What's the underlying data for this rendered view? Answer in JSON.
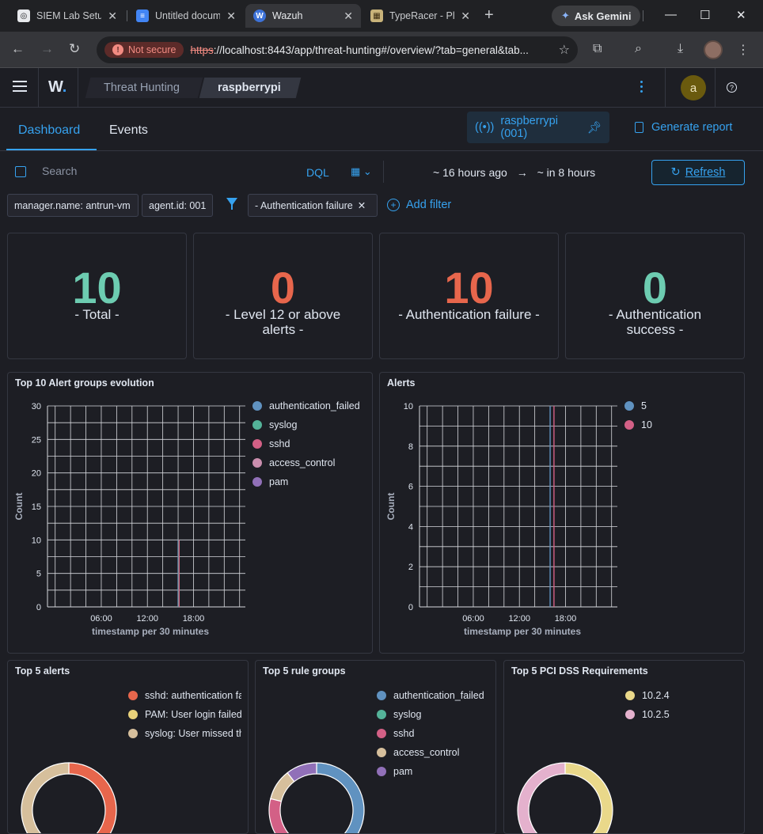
{
  "browser": {
    "tabs": [
      {
        "title": "SIEM Lab Setup"
      },
      {
        "title": "Untitled document"
      },
      {
        "title": "Wazuh"
      },
      {
        "title": "TypeRacer - Play"
      }
    ],
    "gemini_label": "Ask Gemini",
    "not_secure_label": "Not secure",
    "url_scheme": "https",
    "url_rest": "://localhost:8443/app/threat-hunting#/overview/?tab=general&tab..."
  },
  "header": {
    "logo": "W",
    "breadcrumbs": [
      "Threat Hunting",
      "raspberrypi"
    ],
    "user_initial": "a"
  },
  "tabs": {
    "items": [
      "Dashboard",
      "Events"
    ],
    "agent_label": "raspberrypi (001)",
    "generate_report": "Generate report"
  },
  "query": {
    "search_placeholder": "Search",
    "dql_label": "DQL",
    "time_start": "~ 16 hours ago",
    "time_arrow": "→",
    "time_end": "~ in 8 hours",
    "refresh_label": "Refresh"
  },
  "filters": {
    "pills": [
      "manager.name: antrun-vm",
      "agent.id: 001",
      "- Authentication failure"
    ],
    "add_filter": "Add filter"
  },
  "metrics": [
    {
      "value": "10",
      "label": "- Total -",
      "color": "#6dccb1"
    },
    {
      "value": "0",
      "label": "- Level 12 or above alerts -",
      "color": "#e7664c"
    },
    {
      "value": "10",
      "label": "- Authentication failure -",
      "color": "#e7664c"
    },
    {
      "value": "0",
      "label": "- Authentication success -",
      "color": "#6dccb1"
    }
  ],
  "chart_data": [
    {
      "type": "line",
      "title": "Top 10 Alert groups evolution",
      "xlabel": "timestamp per 30 minutes",
      "ylabel": "Count",
      "x_ticks": [
        "06:00",
        "12:00",
        "18:00"
      ],
      "y_ticks": [
        0,
        5,
        10,
        15,
        20,
        25,
        30
      ],
      "ylim": [
        0,
        30
      ],
      "series": [
        {
          "name": "authentication_failed",
          "color": "#6092c0",
          "values": [
            {
              "x": "16:00",
              "y": 10
            }
          ]
        },
        {
          "name": "syslog",
          "color": "#54b399",
          "values": [
            {
              "x": "16:00",
              "y": 10
            }
          ]
        },
        {
          "name": "sshd",
          "color": "#d36086",
          "values": [
            {
              "x": "16:00",
              "y": 10
            }
          ]
        },
        {
          "name": "access_control",
          "color": "#ca8eae",
          "values": [
            {
              "x": "16:00",
              "y": 0
            }
          ]
        },
        {
          "name": "pam",
          "color": "#9170b8",
          "values": [
            {
              "x": "16:00",
              "y": 0
            }
          ]
        }
      ],
      "legend": "right",
      "grid": true
    },
    {
      "type": "line",
      "title": "Alerts",
      "xlabel": "timestamp per 30 minutes",
      "ylabel": "Count",
      "x_ticks": [
        "06:00",
        "12:00",
        "18:00"
      ],
      "y_ticks": [
        0,
        2,
        4,
        6,
        8,
        10
      ],
      "ylim": [
        0,
        10
      ],
      "series": [
        {
          "name": "5",
          "color": "#6092c0",
          "values": [
            {
              "x": "16:00",
              "y": 10
            }
          ]
        },
        {
          "name": "10",
          "color": "#d36086",
          "values": [
            {
              "x": "16:30",
              "y": 10
            }
          ]
        }
      ],
      "legend": "right",
      "grid": true
    },
    {
      "type": "pie",
      "title": "Top 5 alerts",
      "slices": [
        {
          "name": "sshd: authentication failed.",
          "color": "#e7664c",
          "value": 5
        },
        {
          "name": "PAM: User login failed.",
          "color": "#e9d27a",
          "value": 1
        },
        {
          "name": "syslog: User missed the password more than one time",
          "color": "#d6bf9c",
          "value": 4
        }
      ],
      "legend": "top"
    },
    {
      "type": "pie",
      "title": "Top 5 rule groups",
      "slices": [
        {
          "name": "authentication_failed",
          "color": "#6092c0",
          "value": 10
        },
        {
          "name": "syslog",
          "color": "#54b399",
          "value": 0
        },
        {
          "name": "sshd",
          "color": "#d36086",
          "value": 5
        },
        {
          "name": "access_control",
          "color": "#d6bf9c",
          "value": 2
        },
        {
          "name": "pam",
          "color": "#9170b8",
          "value": 2
        }
      ],
      "legend": "top"
    },
    {
      "type": "pie",
      "title": "Top 5 PCI DSS Requirements",
      "slices": [
        {
          "name": "10.2.4",
          "color": "#e9d88a",
          "value": 10
        },
        {
          "name": "10.2.5",
          "color": "#e4b1cd",
          "value": 10
        }
      ],
      "legend": "top"
    }
  ]
}
